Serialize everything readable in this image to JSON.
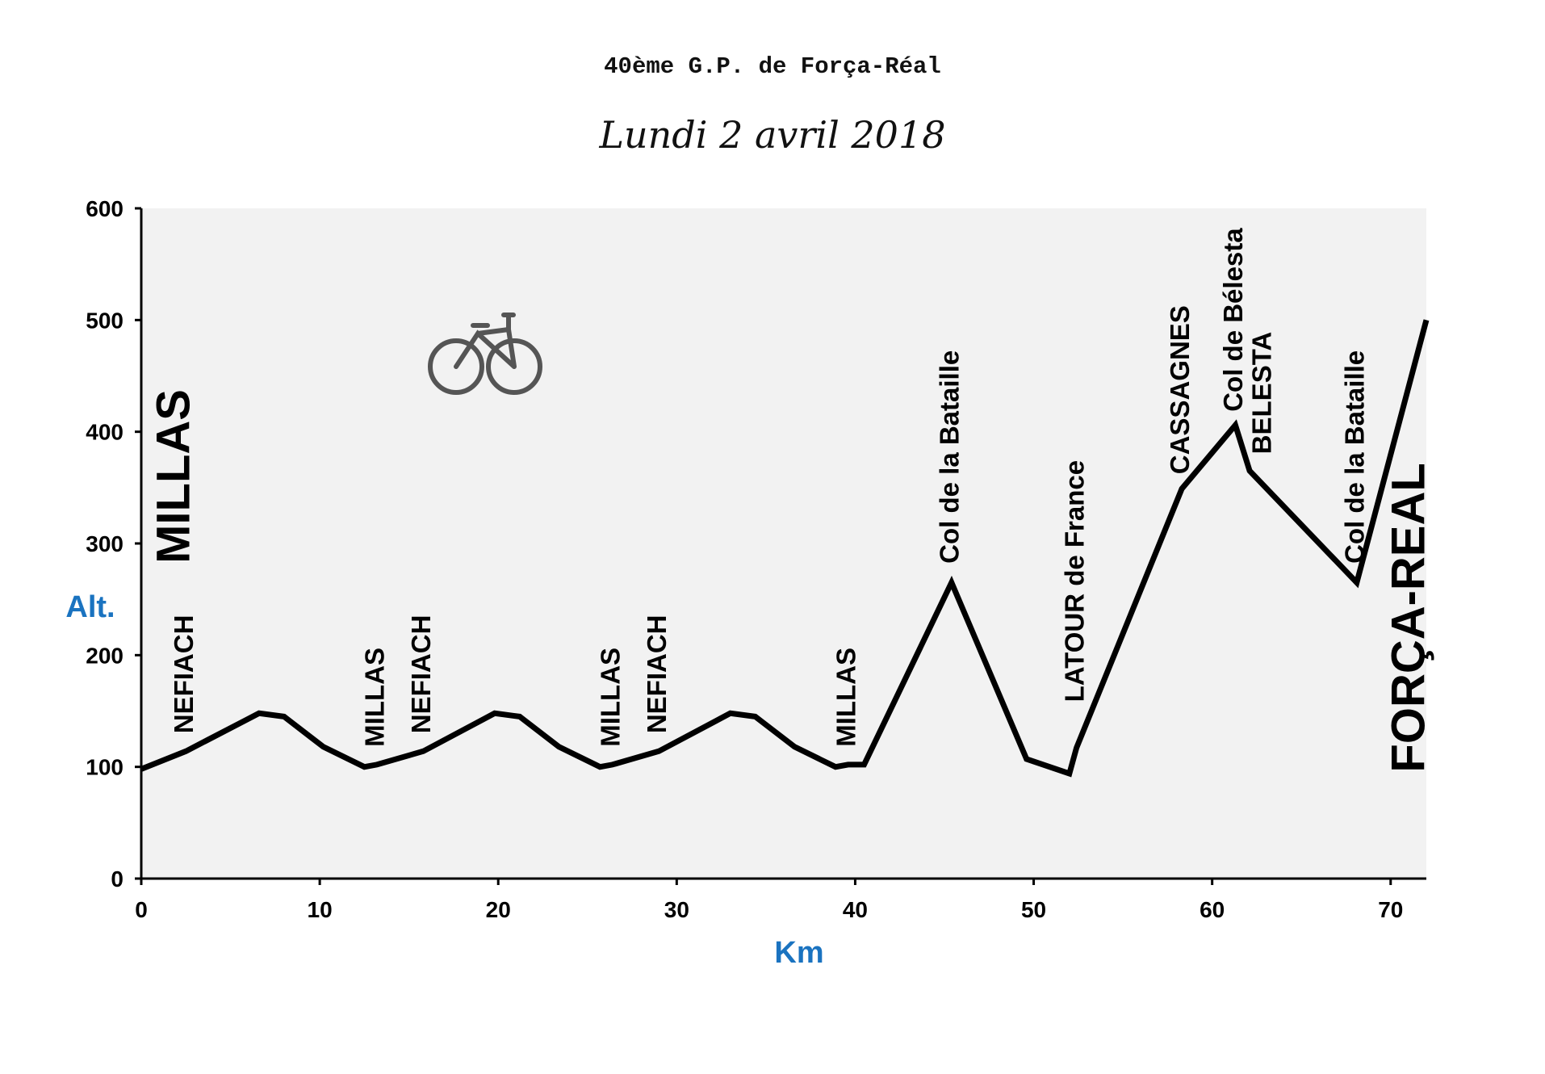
{
  "chart_data": {
    "type": "line",
    "title": "40ème G.P. de Força-Réal",
    "subtitle": "Lundi 2 avril 2018",
    "xlabel": "Km",
    "ylabel": "Alt.",
    "xlim": [
      0,
      72
    ],
    "ylim": [
      0,
      600
    ],
    "xticks": [
      0,
      10,
      20,
      30,
      40,
      50,
      60,
      70
    ],
    "yticks": [
      0,
      100,
      200,
      300,
      400,
      500,
      600
    ],
    "grid": false,
    "background": "#f2f2f2",
    "line_color": "#000000",
    "x": [
      0,
      2.5,
      6.6,
      8,
      10.2,
      12.5,
      13.2,
      15.8,
      19.8,
      21.2,
      23.4,
      25.7,
      26.4,
      29,
      33,
      34.4,
      36.6,
      38.9,
      39.6,
      40.5,
      45.4,
      49.6,
      52,
      52.4,
      58.3,
      61.3,
      62.1,
      68.1,
      72
    ],
    "y": [
      98,
      114,
      148,
      145,
      118,
      100,
      102,
      114,
      148,
      145,
      118,
      100,
      102,
      114,
      148,
      145,
      118,
      100,
      102,
      102,
      265,
      107,
      94,
      117,
      349,
      406,
      365,
      265,
      500
    ],
    "annotations": [
      {
        "text": "MILLAS",
        "x": 2,
        "y": 282,
        "size": "large"
      },
      {
        "text": "NEFIACH",
        "x": 2.5,
        "y": 130,
        "size": "small"
      },
      {
        "text": "MILLAS",
        "x": 13.2,
        "y": 118,
        "size": "small"
      },
      {
        "text": "NEFIACH",
        "x": 15.8,
        "y": 130,
        "size": "small"
      },
      {
        "text": "MILLAS",
        "x": 26.4,
        "y": 118,
        "size": "small"
      },
      {
        "text": "NEFIACH",
        "x": 29,
        "y": 130,
        "size": "small"
      },
      {
        "text": "MILLAS",
        "x": 39.6,
        "y": 118,
        "size": "small"
      },
      {
        "text": "Col de la Bataille",
        "x": 45.4,
        "y": 282,
        "size": "small"
      },
      {
        "text": "LATOUR de France",
        "x": 52.4,
        "y": 158,
        "size": "small"
      },
      {
        "text": "CASSAGNES",
        "x": 58.3,
        "y": 362,
        "size": "small"
      },
      {
        "text": "Col de Bélesta",
        "x": 61.3,
        "y": 418,
        "size": "small"
      },
      {
        "text": "BELESTA",
        "x": 62.9,
        "y": 380,
        "size": "small"
      },
      {
        "text": "Col de la Bataille",
        "x": 68.1,
        "y": 282,
        "size": "small"
      },
      {
        "text": "FORÇA-REAL",
        "x": 71.2,
        "y": 95,
        "size": "large"
      }
    ],
    "icons": [
      "bicycle-icon"
    ]
  }
}
